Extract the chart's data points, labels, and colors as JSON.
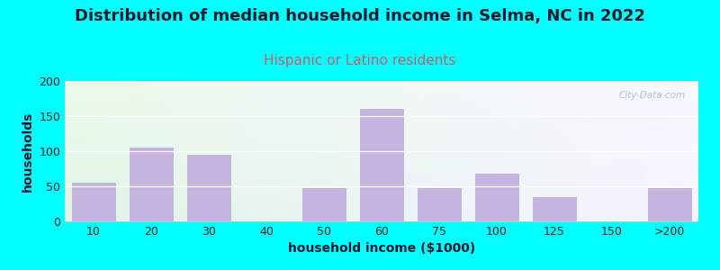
{
  "title": "Distribution of median household income in Selma, NC in 2022",
  "subtitle": "Hispanic or Latino residents",
  "xlabel": "household income ($1000)",
  "ylabel": "households",
  "background_color": "#00FFFF",
  "bar_color": "#c5b3e0",
  "bar_edge_color": "#b0a0d0",
  "categories": [
    "10",
    "20",
    "30",
    "40",
    "50",
    "60",
    "75",
    "100",
    "125",
    "150",
    ">200"
  ],
  "values": [
    55,
    105,
    95,
    0,
    48,
    160,
    48,
    68,
    35,
    0,
    48
  ],
  "ylim": [
    0,
    200
  ],
  "yticks": [
    0,
    50,
    100,
    150,
    200
  ],
  "title_fontsize": 13,
  "subtitle_fontsize": 11,
  "axis_label_fontsize": 10,
  "tick_fontsize": 9,
  "title_color": "#1a1a2e",
  "subtitle_color": "#c06070",
  "xlabel_color": "#1a1a2e",
  "ylabel_color": "#1a1a2e",
  "watermark_text": "City-Data.com",
  "watermark_color": "#aab8cc",
  "grid_color": "#e8e8e8"
}
